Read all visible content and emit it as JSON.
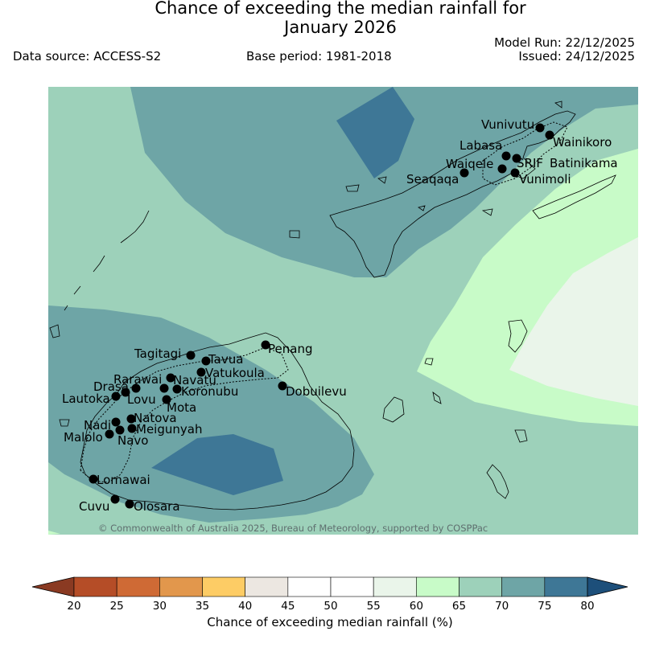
{
  "header": {
    "title_line1": "Chance of exceeding the median rainfall for",
    "title_line2": "January 2026",
    "data_source": "Data source: ACCESS-S2",
    "base_period": "Base period: 1981-2018",
    "model_run": "Model Run: 22/12/2025",
    "issued": "Issued: 24/12/2025"
  },
  "map": {
    "copyright": "© Commonwealth of Australia 2025, Bureau of Meteorology, supported by COSPPac",
    "places": [
      {
        "name": "Vunivutu"
      },
      {
        "name": "Wainikoro"
      },
      {
        "name": "Labasa"
      },
      {
        "name": "Waiqele"
      },
      {
        "name": "SRIF"
      },
      {
        "name": "Batinikama"
      },
      {
        "name": "Seaqaqa"
      },
      {
        "name": "Vunimoli"
      },
      {
        "name": "Tagitagi"
      },
      {
        "name": "Penang"
      },
      {
        "name": "Tavua"
      },
      {
        "name": "Vatukoula"
      },
      {
        "name": "Rarawai"
      },
      {
        "name": "Navatu"
      },
      {
        "name": "Drasa"
      },
      {
        "name": "Koronubu"
      },
      {
        "name": "Dobuilevu"
      },
      {
        "name": "Lautoka"
      },
      {
        "name": "Lovu"
      },
      {
        "name": "Mota"
      },
      {
        "name": "Natova"
      },
      {
        "name": "Nadi"
      },
      {
        "name": "Meigunyah"
      },
      {
        "name": "Malolo"
      },
      {
        "name": "Navo"
      },
      {
        "name": "Lomawai"
      },
      {
        "name": "Cuvu"
      },
      {
        "name": "Olosara"
      }
    ]
  },
  "legend": {
    "title": "Chance of exceeding median rainfall (%)",
    "ticks": [
      "20",
      "25",
      "30",
      "35",
      "40",
      "45",
      "50",
      "55",
      "60",
      "65",
      "70",
      "75",
      "80"
    ],
    "colors": {
      "below_20": "#8a3a22",
      "bins": [
        "#b54d27",
        "#cf6a35",
        "#e2974c",
        "#fdcc65",
        "#ece7e1",
        "#ffffff",
        "#ffffff",
        "#eaf5ea",
        "#c8fbc8",
        "#9dd1ba",
        "#6ea5a6",
        "#3e7796"
      ],
      "above_80": "#1d4f7a"
    }
  }
}
